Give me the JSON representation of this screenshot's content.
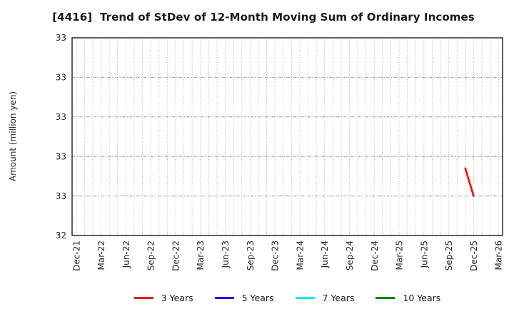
{
  "title": "[4416]  Trend of StDev of 12-Month Moving Sum of Ordinary Incomes",
  "y_axis_label": "Amount (million yen)",
  "chart_data": {
    "type": "line",
    "title": "[4416]  Trend of StDev of 12-Month Moving Sum of Ordinary Incomes",
    "ylabel": "Amount (million yen)",
    "xlabel": "",
    "x_tick_labels": [
      "Dec-21",
      "Mar-22",
      "Jun-22",
      "Sep-22",
      "Dec-22",
      "Mar-23",
      "Jun-23",
      "Sep-23",
      "Dec-23",
      "Mar-24",
      "Jun-24",
      "Sep-24",
      "Dec-24",
      "Mar-25",
      "Jun-25",
      "Sep-25",
      "Dec-25",
      "Mar-26"
    ],
    "x_tick_interval_months": 3,
    "x_range_months": 52,
    "ylim": [
      32.5,
      33.0
    ],
    "y_ticks": [
      33.0,
      32.9,
      32.8,
      32.7,
      32.6,
      32.5
    ],
    "y_tick_display": [
      "33",
      "33",
      "33",
      "33",
      "33",
      "32"
    ],
    "grid": {
      "vertical": "dotted, monthly",
      "horizontal": "dashed, at inner y ticks"
    },
    "legend_position": "bottom center",
    "series": [
      {
        "name": "3 Years",
        "color": "#ff0000",
        "points": [
          {
            "x": "Nov-25",
            "month_index": 47,
            "value": 32.67
          },
          {
            "x": "Dec-25",
            "month_index": 48,
            "value": 32.6
          }
        ]
      },
      {
        "name": "5 Years",
        "color": "#0000ff",
        "points": []
      },
      {
        "name": "7 Years",
        "color": "#00eeee",
        "points": []
      },
      {
        "name": "10 Years",
        "color": "#008000",
        "points": []
      }
    ]
  }
}
